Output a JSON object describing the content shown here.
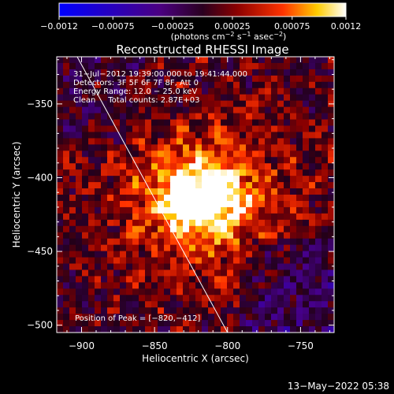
{
  "chart_data": {
    "type": "heatmap",
    "title": "Reconstructed RHESSI Image",
    "xlabel": "Heliocentric X (arcsec)",
    "ylabel": "Heliocentric Y (arcsec)",
    "xlim": [
      -917,
      -727
    ],
    "ylim": [
      -505,
      -318
    ],
    "x_ticks": [
      -900,
      -850,
      -800,
      -750
    ],
    "y_ticks": [
      -500,
      -450,
      -400,
      -350
    ],
    "x_tick_labels": [
      "−900",
      "−850",
      "−800",
      "−750"
    ],
    "y_tick_labels": [
      "−500",
      "−450",
      "−400",
      "−350"
    ],
    "colorbar": {
      "range": [
        -0.0012,
        0.0012
      ],
      "ticks": [
        -0.0012,
        -0.00075,
        -0.00025,
        0.00025,
        0.00075,
        0.0012
      ],
      "tick_labels": [
        "−0.0012",
        "−0.00075",
        "−0.00025",
        "0.00025",
        "0.00075",
        "0.0012"
      ],
      "unit_label": "(photons cm",
      "unit_exp1": "−2",
      "unit_mid": " s",
      "unit_exp2": "−1",
      "unit_mid2": " asec",
      "unit_exp3": "−2",
      "unit_end": ")"
    },
    "annotations": {
      "line1": "31−Jul−2012 19:39:00.000 to 19:41:44.000",
      "line2": "Detectors: 3F 5F 6F 7F 8F, Att 0",
      "line3": "Energy Range: 12.0 − 25.0 keV",
      "line4": "Clean     Total counts: 2.87E+03",
      "peak": "Position of Peak = [−820,−412]"
    },
    "peak": [
      -820,
      -412
    ],
    "limb_line": [
      [
        -903,
        -318
      ],
      [
        -800,
        -505
      ]
    ],
    "timestamp": "13−May−2022 05:38"
  }
}
